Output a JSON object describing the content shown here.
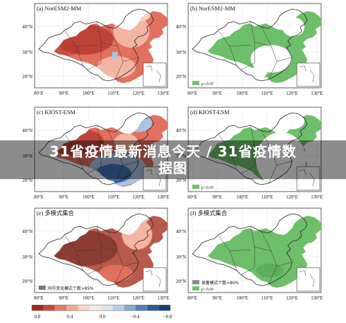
{
  "banner": {
    "title": "31省疫情最新消息今天 / 31省疫情数据图"
  },
  "panels": [
    {
      "id": "a",
      "title": "(a) NorESM2-MM",
      "type": "correlation"
    },
    {
      "id": "b",
      "title": "(b) NorESM2-MM",
      "type": "significance",
      "legend": "p<0.05"
    },
    {
      "id": "c",
      "title": "(c) KIOST-ESM",
      "type": "correlation"
    },
    {
      "id": "d",
      "title": "(d) KIOST-ESM",
      "type": "significance",
      "legend": "p<0.05"
    },
    {
      "id": "e",
      "title": "(e) 多模式集合",
      "type": "correlation",
      "legend": "同号变化模式个数>85%"
    },
    {
      "id": "f",
      "title": "(f) 多模式集合",
      "type": "significance",
      "legend": "显著模式个数>80%",
      "legend2": "p<0.05"
    }
  ],
  "axes": {
    "lat_ticks": [
      "40°N",
      "30°N",
      "20°N"
    ],
    "lon_ticks": [
      "80°E",
      "90°E",
      "100°E",
      "110°E",
      "120°E",
      "130°E"
    ]
  },
  "colorbar": {
    "labels": [
      "0.8",
      "0.4",
      "0.0",
      "−0.4",
      "−0.8"
    ],
    "colors": [
      "#a2271f",
      "#c9473a",
      "#e57a66",
      "#f2aa95",
      "#f9d6c8",
      "#f3ece8",
      "#dde7f1",
      "#b8cfe6",
      "#85acd2",
      "#4f81b9",
      "#2a5a9a",
      "#123f7a"
    ]
  },
  "colors": {
    "red_dark": "#b83a32",
    "red_mid": "#e2705f",
    "red_light": "#f4b5a3",
    "blue_dark": "#3f73b4",
    "blue_light": "#a9c4e3",
    "brown_dark": "#8c3c33",
    "brown_mid": "#b85a4c",
    "green": "#6dbf69",
    "green_dark": "#4e9d4b",
    "banner_bg": "#000000"
  }
}
